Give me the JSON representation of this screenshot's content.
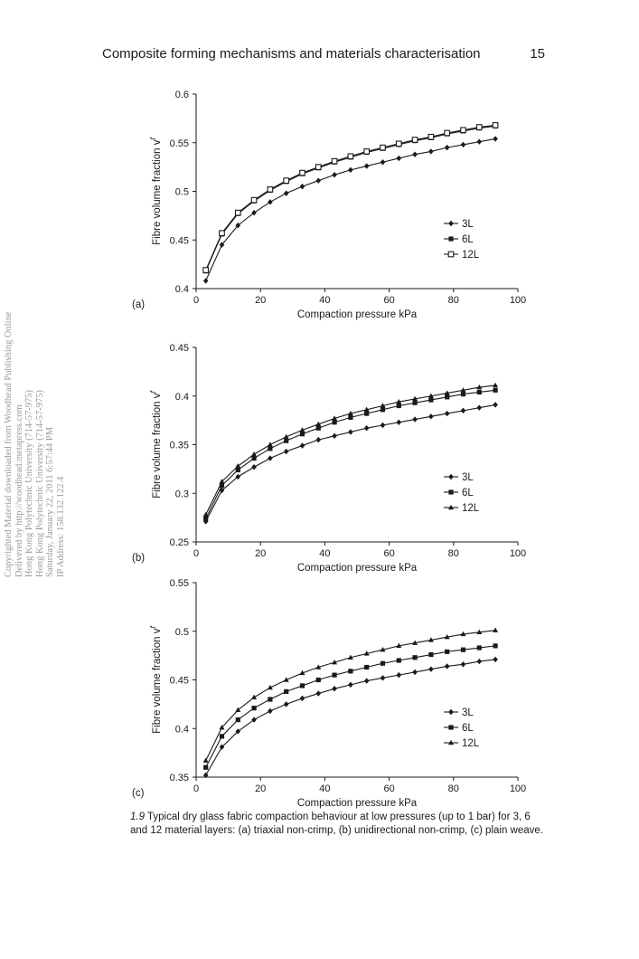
{
  "header": {
    "title": "Composite forming mechanisms and materials characterisation",
    "page_number": "15"
  },
  "watermark": {
    "lines": [
      "Copyrighted Material downloaded from Woodhead Publishing Online",
      "Delivered by http://woodhead.metapress.com",
      "Hong Kong Polytechnic University (714-57-975)",
      "Hong Kong Polytechnic University (714-57-975)",
      "Saturday, January 22, 2011 6:57:44 PM",
      "IP Address: 158.132.122.4"
    ]
  },
  "caption": {
    "figure_number": "1.9",
    "text": "Typical dry glass fabric compaction behaviour at low pressures (up to 1 bar) for 3, 6 and 12 material layers: (a) triaxial non-crimp, (b) unidirectional non-crimp, (c) plain weave."
  },
  "chart_data": [
    {
      "type": "line",
      "panel_label": "(a)",
      "xlabel": "Compaction pressure kPa",
      "ylabel": "Fibre volume fraction v",
      "ylabel_superscript": "f",
      "xlim": [
        0,
        100
      ],
      "ylim": [
        0.4,
        0.6
      ],
      "xticks": [
        0,
        20,
        40,
        60,
        80,
        100
      ],
      "yticks": [
        0.4,
        0.45,
        0.5,
        0.55,
        0.6
      ],
      "ytick_labels": [
        "0.4",
        "0.45",
        "0.5",
        "0.55",
        "0.6"
      ],
      "legend_position": "lower-right",
      "grid": false,
      "x": [
        3,
        8,
        13,
        18,
        23,
        28,
        33,
        38,
        43,
        48,
        53,
        58,
        63,
        68,
        73,
        78,
        83,
        88,
        93
      ],
      "series": [
        {
          "name": "3L",
          "marker": "diamond",
          "values": [
            0.408,
            0.445,
            0.465,
            0.478,
            0.489,
            0.498,
            0.505,
            0.511,
            0.517,
            0.522,
            0.526,
            0.53,
            0.534,
            0.538,
            0.541,
            0.545,
            0.548,
            0.551,
            0.554
          ]
        },
        {
          "name": "6L",
          "marker": "square",
          "values": [
            0.418,
            0.456,
            0.477,
            0.49,
            0.501,
            0.51,
            0.518,
            0.524,
            0.53,
            0.535,
            0.54,
            0.544,
            0.548,
            0.552,
            0.555,
            0.559,
            0.562,
            0.565,
            0.567
          ]
        },
        {
          "name": "12L",
          "marker": "open-square",
          "values": [
            0.419,
            0.457,
            0.478,
            0.491,
            0.502,
            0.511,
            0.519,
            0.525,
            0.531,
            0.536,
            0.541,
            0.545,
            0.549,
            0.553,
            0.556,
            0.56,
            0.563,
            0.566,
            0.568
          ]
        }
      ]
    },
    {
      "type": "line",
      "panel_label": "(b)",
      "xlabel": "Compaction pressure kPa",
      "ylabel": "Fibre volume fraction v",
      "ylabel_superscript": "f",
      "xlim": [
        0,
        100
      ],
      "ylim": [
        0.25,
        0.45
      ],
      "xticks": [
        0,
        20,
        40,
        60,
        80,
        100
      ],
      "yticks": [
        0.25,
        0.3,
        0.35,
        0.4,
        0.45
      ],
      "ytick_labels": [
        "0.25",
        "0.3",
        "0.35",
        "0.4",
        "0.45"
      ],
      "legend_position": "lower-right",
      "grid": false,
      "x": [
        3,
        8,
        13,
        18,
        23,
        28,
        33,
        38,
        43,
        48,
        53,
        58,
        63,
        68,
        73,
        78,
        83,
        88,
        93
      ],
      "series": [
        {
          "name": "3L",
          "marker": "diamond",
          "values": [
            0.271,
            0.303,
            0.317,
            0.327,
            0.336,
            0.343,
            0.349,
            0.355,
            0.359,
            0.363,
            0.367,
            0.37,
            0.373,
            0.376,
            0.379,
            0.382,
            0.385,
            0.388,
            0.391
          ]
        },
        {
          "name": "6L",
          "marker": "square",
          "values": [
            0.274,
            0.308,
            0.324,
            0.336,
            0.346,
            0.354,
            0.361,
            0.367,
            0.373,
            0.378,
            0.382,
            0.386,
            0.39,
            0.393,
            0.396,
            0.399,
            0.402,
            0.404,
            0.406
          ]
        },
        {
          "name": "12L",
          "marker": "triangle",
          "values": [
            0.278,
            0.312,
            0.328,
            0.34,
            0.35,
            0.358,
            0.365,
            0.371,
            0.377,
            0.382,
            0.386,
            0.39,
            0.394,
            0.397,
            0.4,
            0.403,
            0.406,
            0.409,
            0.411
          ]
        }
      ]
    },
    {
      "type": "line",
      "panel_label": "(c)",
      "xlabel": "Compaction pressure kPa",
      "ylabel": "Fibre volume fraction v",
      "ylabel_superscript": "f",
      "xlim": [
        0,
        100
      ],
      "ylim": [
        0.35,
        0.55
      ],
      "xticks": [
        0,
        20,
        40,
        60,
        80,
        100
      ],
      "yticks": [
        0.35,
        0.4,
        0.45,
        0.5,
        0.55
      ],
      "ytick_labels": [
        "0.35",
        "0.4",
        "0.45",
        "0.5",
        "0.55"
      ],
      "legend_position": "lower-right",
      "grid": false,
      "x": [
        3,
        8,
        13,
        18,
        23,
        28,
        33,
        38,
        43,
        48,
        53,
        58,
        63,
        68,
        73,
        78,
        83,
        88,
        93
      ],
      "series": [
        {
          "name": "3L",
          "marker": "diamond",
          "values": [
            0.352,
            0.381,
            0.397,
            0.409,
            0.418,
            0.425,
            0.431,
            0.436,
            0.441,
            0.445,
            0.449,
            0.452,
            0.455,
            0.458,
            0.461,
            0.464,
            0.466,
            0.469,
            0.471
          ]
        },
        {
          "name": "6L",
          "marker": "square",
          "values": [
            0.36,
            0.392,
            0.409,
            0.421,
            0.43,
            0.438,
            0.444,
            0.45,
            0.455,
            0.459,
            0.463,
            0.467,
            0.47,
            0.473,
            0.476,
            0.479,
            0.481,
            0.483,
            0.485
          ]
        },
        {
          "name": "12L",
          "marker": "triangle",
          "values": [
            0.367,
            0.401,
            0.419,
            0.432,
            0.442,
            0.45,
            0.457,
            0.463,
            0.468,
            0.473,
            0.477,
            0.481,
            0.485,
            0.488,
            0.491,
            0.494,
            0.497,
            0.499,
            0.501
          ]
        }
      ]
    }
  ]
}
